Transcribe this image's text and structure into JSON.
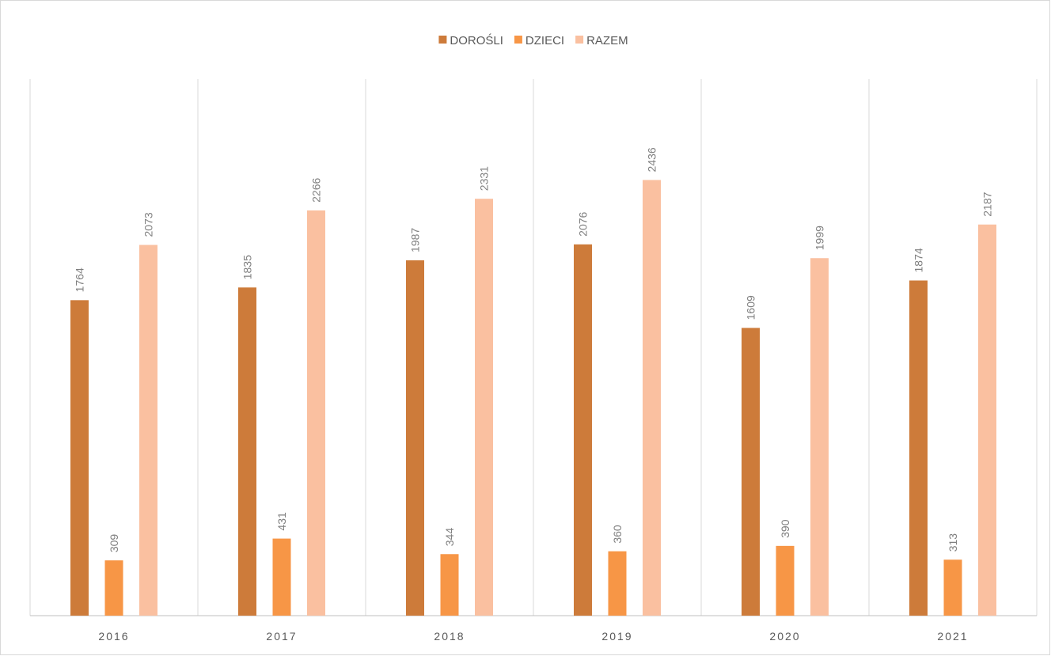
{
  "chart_data": {
    "type": "bar",
    "categories": [
      "2016",
      "2017",
      "2018",
      "2019",
      "2020",
      "2021"
    ],
    "series": [
      {
        "name": "DOROŚLI",
        "color": "#cd7b3a",
        "values": [
          1764,
          1835,
          1987,
          2076,
          1609,
          1874
        ]
      },
      {
        "name": "DZIECI",
        "color": "#f79646",
        "values": [
          309,
          431,
          344,
          360,
          390,
          313
        ]
      },
      {
        "name": "RAZEM",
        "color": "#fac0a0",
        "values": [
          2073,
          2266,
          2331,
          2436,
          1999,
          2187
        ]
      }
    ],
    "ylim": [
      0,
      3000
    ],
    "legend": "top"
  }
}
